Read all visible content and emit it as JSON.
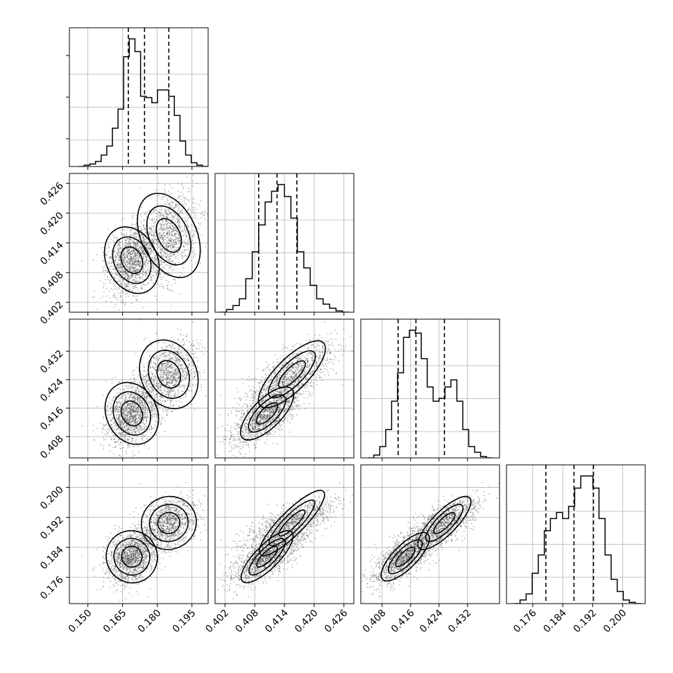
{
  "chart_data": {
    "type": "corner",
    "parameters": 4,
    "grid": true,
    "colors": {
      "ink": "#000000",
      "grid": "#b0b0b0",
      "points": "#333333"
    },
    "axes": [
      {
        "range": [
          0.142,
          0.202
        ],
        "ticks": [
          0.15,
          0.165,
          0.18,
          0.195
        ],
        "tick_labels": [
          "0.150",
          "0.165",
          "0.180",
          "0.195"
        ]
      },
      {
        "range": [
          0.4,
          0.428
        ],
        "ticks": [
          0.402,
          0.408,
          0.414,
          0.42,
          0.426
        ],
        "tick_labels": [
          "0.402",
          "0.408",
          "0.414",
          "0.420",
          "0.426"
        ]
      },
      {
        "range": [
          0.402,
          0.441
        ],
        "ticks": [
          0.408,
          0.416,
          0.424,
          0.432
        ],
        "tick_labels": [
          "0.408",
          "0.416",
          "0.424",
          "0.432"
        ]
      },
      {
        "range": [
          0.169,
          0.206
        ],
        "ticks": [
          0.176,
          0.184,
          0.192,
          0.2
        ],
        "tick_labels": [
          "0.176",
          "0.184",
          "0.192",
          "0.200"
        ]
      }
    ],
    "quantiles": [
      [
        0.1675,
        0.1745,
        0.185
      ],
      [
        0.4088,
        0.4125,
        0.4165
      ],
      [
        0.4125,
        0.4175,
        0.4255
      ],
      [
        0.1795,
        0.187,
        0.1922
      ]
    ],
    "histograms": [
      {
        "edges": [
          0.146,
          0.202
        ],
        "counts": [
          0,
          1,
          2,
          4,
          9,
          16,
          30,
          45,
          86,
          100,
          90,
          55,
          54,
          50,
          60,
          60,
          55,
          40,
          20,
          9,
          3,
          1,
          0
        ]
      },
      {
        "edges": [
          0.401,
          0.427
        ],
        "counts": [
          0,
          2,
          5,
          10,
          25,
          45,
          65,
          82,
          90,
          95,
          86,
          70,
          45,
          33,
          20,
          10,
          6,
          3,
          1,
          0
        ]
      },
      {
        "edges": [
          0.404,
          0.439
        ],
        "counts": [
          0,
          2,
          8,
          20,
          40,
          60,
          85,
          90,
          88,
          70,
          50,
          40,
          42,
          50,
          55,
          40,
          20,
          8,
          4,
          1,
          0
        ]
      },
      {
        "edges": [
          0.171,
          0.205
        ],
        "counts": [
          0,
          3,
          8,
          25,
          40,
          60,
          70,
          75,
          70,
          80,
          95,
          105,
          105,
          95,
          70,
          40,
          20,
          10,
          3,
          1,
          0
        ]
      }
    ],
    "scatter_components": [
      {
        "weight": 0.55,
        "mean": [
          0.169,
          0.4105,
          0.4145,
          0.1815
        ],
        "sd": [
          0.0055,
          0.0035,
          0.0045,
          0.0035
        ]
      },
      {
        "weight": 0.45,
        "mean": [
          0.185,
          0.4155,
          0.4255,
          0.1905
        ],
        "sd": [
          0.006,
          0.0045,
          0.005,
          0.0035
        ]
      }
    ]
  }
}
